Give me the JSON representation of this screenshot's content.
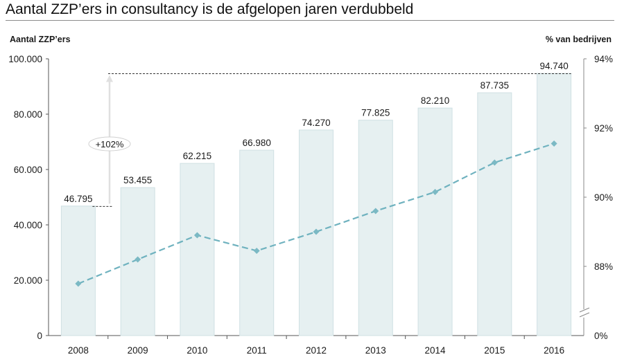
{
  "title": "Aantal ZZP’ers in consultancy is de afgelopen jaren verdubbeld",
  "colors": {
    "bar_fill": "#e6f0f1",
    "bar_stroke": "#cfe0e3",
    "line": "#6fb2bf",
    "marker": "#7bb9c4",
    "text": "#1a1a1a",
    "guide": "#333333",
    "arrow": "#e0e0e0"
  },
  "chart_data": {
    "type": "bar",
    "categories": [
      "2008",
      "2009",
      "2010",
      "2011",
      "2012",
      "2013",
      "2014",
      "2015",
      "2016"
    ],
    "series": [
      {
        "type": "bar",
        "axis": "left",
        "values": [
          46795,
          53455,
          62215,
          66980,
          74270,
          77825,
          82210,
          87735,
          94740
        ],
        "labels": [
          "46.795",
          "53.455",
          "62.215",
          "66.980",
          "74.270",
          "77.825",
          "82.210",
          "87.735",
          "94.740"
        ]
      },
      {
        "type": "line",
        "axis": "right",
        "style": "dashed",
        "marker": "diamond",
        "values": [
          87.5,
          88.2,
          88.9,
          88.45,
          89.0,
          89.6,
          90.15,
          91.0,
          91.55
        ]
      }
    ],
    "y_left": {
      "label": "Aantal ZZP’ers",
      "ylim": [
        0,
        100000
      ],
      "ticks": [
        0,
        20000,
        40000,
        60000,
        80000,
        100000
      ],
      "tick_labels": [
        "0",
        "20.000",
        "40.000",
        "60.000",
        "80.000",
        "100.000"
      ]
    },
    "y_right": {
      "label": "% van bedrijven",
      "axis_break": true,
      "ylim": [
        86,
        94
      ],
      "ticks": [
        88,
        90,
        92,
        94
      ],
      "tick_labels": [
        "88%",
        "90%",
        "92%",
        "94%"
      ],
      "zero_label": "0%"
    },
    "annotations": [
      {
        "text": "+102%",
        "from_category": "2008",
        "to_category": "2016"
      }
    ],
    "grid": false,
    "legend": "none"
  }
}
